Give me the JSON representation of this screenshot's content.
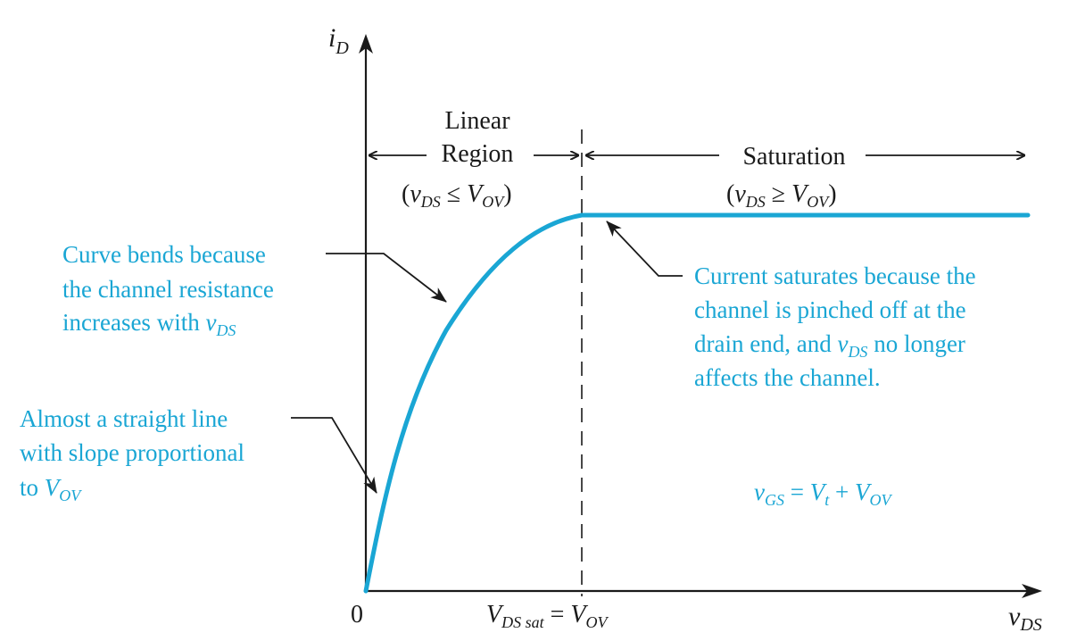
{
  "colors": {
    "curve": "#1aa6d4",
    "annotation_text": "#1aa6d4",
    "axis": "#1a1a1a"
  },
  "axes": {
    "y_label": {
      "main": "i",
      "sub": "D"
    },
    "x_label": {
      "main": "v",
      "sub": "DS"
    },
    "origin": "0",
    "vdssat": {
      "lhs": "V",
      "lhs_sub": "DS sat",
      "eq": " = ",
      "rhs": "V",
      "rhs_sub": "OV"
    }
  },
  "regions": {
    "linear": {
      "line1": "Linear",
      "line2": "Region",
      "condition": {
        "open": "(",
        "v": "v",
        "v_sub": "DS",
        "op": " ≤ ",
        "V": "V",
        "V_sub": "OV",
        "close": ")"
      }
    },
    "saturation": {
      "label": "Saturation",
      "condition": {
        "open": "(",
        "v": "v",
        "v_sub": "DS",
        "op": " ≥ ",
        "V": "V",
        "V_sub": "OV",
        "close": ")"
      }
    }
  },
  "annotations": {
    "curve_bends": {
      "line1": "Curve bends because",
      "line2": "the channel resistance",
      "line3_text": "increases with ",
      "line3_v": "v",
      "line3_sub": "DS"
    },
    "straight_line": {
      "line1": "Almost a straight line",
      "line2": "with slope proportional",
      "line3_text": "to ",
      "line3_V": "V",
      "line3_sub": "OV"
    },
    "current_saturates": {
      "line1": "Current saturates because the",
      "line2": "channel is pinched off at the",
      "line3_pre": "drain end, and ",
      "line3_v": "v",
      "line3_sub": "DS",
      "line3_post": " no longer",
      "line4": "affects the channel."
    },
    "vgs_equation": {
      "v": "v",
      "v_sub": "GS",
      "eq": " = ",
      "Vt": "V",
      "Vt_sub": "t",
      "plus": " + ",
      "Vov": "V",
      "Vov_sub": "OV"
    }
  }
}
